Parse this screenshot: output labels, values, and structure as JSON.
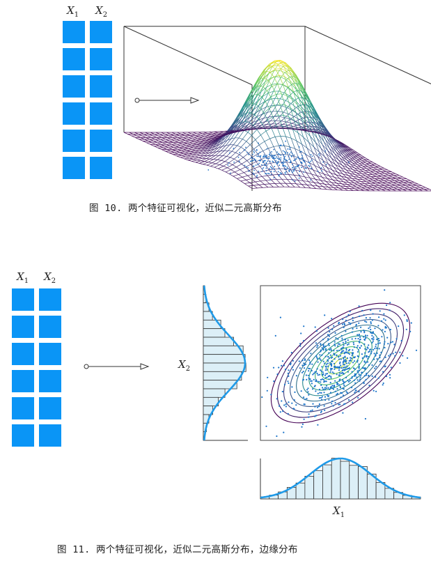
{
  "figure10": {
    "grid_labels": {
      "x1": "X",
      "x1_sub": "1",
      "x2": "X",
      "x2_sub": "2"
    },
    "grid_rows": 6,
    "grid_cols": 2,
    "caption": "图 10. 两个特征可视化，近似二元高斯分布"
  },
  "figure11": {
    "grid_labels": {
      "x1": "X",
      "x1_sub": "1",
      "x2": "X",
      "x2_sub": "2"
    },
    "grid_rows": 6,
    "grid_cols": 2,
    "ylabel": {
      "main": "X",
      "sub": "2"
    },
    "xlabel": {
      "main": "X",
      "sub": "1"
    },
    "caption": "图 11. 两个特征可视化，近似二元高斯分布，边缘分布"
  },
  "colors": {
    "cell_blue": "#0a95f6",
    "curve_blue": "#1f9ae8",
    "hist_fill": "#dceff7",
    "contour_outer": "#5b3fb0",
    "contour_inner": "#f2e35a"
  }
}
